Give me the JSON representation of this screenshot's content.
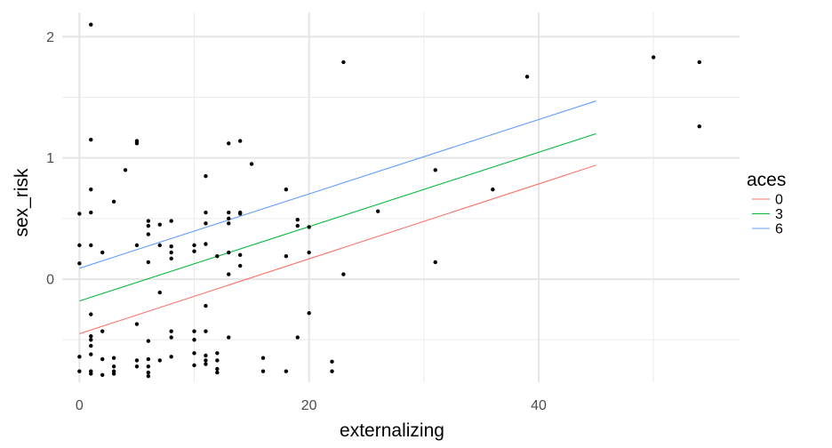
{
  "chart_data": {
    "type": "scatter",
    "xlabel": "externalizing",
    "ylabel": "sex_risk",
    "xlim": [
      -1.5,
      57.5
    ],
    "ylim": [
      -0.85,
      2.2
    ],
    "x_ticks": [
      0,
      20,
      40
    ],
    "x_tick_labels": [
      "0",
      "20",
      "40"
    ],
    "y_ticks": [
      0,
      1,
      2
    ],
    "y_tick_labels": [
      "0",
      "1",
      "2"
    ],
    "grid": true,
    "point_color": "#000000",
    "points": [
      [
        0,
        0.54
      ],
      [
        0,
        0.28
      ],
      [
        0,
        0.13
      ],
      [
        0,
        -0.64
      ],
      [
        0,
        -0.76
      ],
      [
        1,
        2.1
      ],
      [
        1,
        1.15
      ],
      [
        1,
        0.74
      ],
      [
        1,
        0.55
      ],
      [
        1,
        0.28
      ],
      [
        1,
        -0.29
      ],
      [
        1,
        -0.47
      ],
      [
        1,
        -0.5
      ],
      [
        1,
        -0.55
      ],
      [
        1,
        -0.62
      ],
      [
        1,
        -0.76
      ],
      [
        1,
        -0.78
      ],
      [
        2,
        0.22
      ],
      [
        2,
        -0.43
      ],
      [
        2,
        -0.66
      ],
      [
        2,
        -0.79
      ],
      [
        3,
        0.64
      ],
      [
        3,
        -0.65
      ],
      [
        3,
        -0.72
      ],
      [
        3,
        -0.76
      ],
      [
        3,
        -0.78
      ],
      [
        4,
        0.9
      ],
      [
        5,
        1.14
      ],
      [
        5,
        1.12
      ],
      [
        5,
        0.28
      ],
      [
        5,
        -0.37
      ],
      [
        5,
        -0.67
      ],
      [
        5,
        -0.72
      ],
      [
        6,
        0.48
      ],
      [
        6,
        0.44
      ],
      [
        6,
        0.37
      ],
      [
        6,
        0.14
      ],
      [
        6,
        -0.51
      ],
      [
        6,
        -0.66
      ],
      [
        6,
        -0.72
      ],
      [
        6,
        -0.77
      ],
      [
        6,
        -0.8
      ],
      [
        7,
        0.45
      ],
      [
        7,
        0.28
      ],
      [
        7,
        -0.11
      ],
      [
        7,
        -0.67
      ],
      [
        8,
        0.48
      ],
      [
        8,
        0.27
      ],
      [
        8,
        0.22
      ],
      [
        8,
        0.17
      ],
      [
        8,
        -0.43
      ],
      [
        8,
        -0.48
      ],
      [
        8,
        -0.64
      ],
      [
        10,
        0.28
      ],
      [
        10,
        0.23
      ],
      [
        10,
        -0.43
      ],
      [
        10,
        -0.5
      ],
      [
        10,
        -0.61
      ],
      [
        10,
        -0.71
      ],
      [
        11,
        0.85
      ],
      [
        11,
        0.55
      ],
      [
        11,
        0.46
      ],
      [
        11,
        0.29
      ],
      [
        11,
        -0.22
      ],
      [
        11,
        -0.43
      ],
      [
        11,
        -0.63
      ],
      [
        11,
        -0.67
      ],
      [
        11,
        -0.7
      ],
      [
        12,
        0.19
      ],
      [
        12,
        -0.61
      ],
      [
        12,
        -0.67
      ],
      [
        12,
        -0.74
      ],
      [
        12,
        -0.77
      ],
      [
        13,
        1.12
      ],
      [
        13,
        0.55
      ],
      [
        13,
        0.5
      ],
      [
        13,
        0.46
      ],
      [
        13,
        0.22
      ],
      [
        13,
        0.04
      ],
      [
        13,
        -0.48
      ],
      [
        14,
        1.14
      ],
      [
        14,
        0.55
      ],
      [
        14,
        0.54
      ],
      [
        14,
        0.2
      ],
      [
        14,
        0.11
      ],
      [
        15,
        0.95
      ],
      [
        16,
        -0.65
      ],
      [
        16,
        -0.76
      ],
      [
        18,
        0.74
      ],
      [
        18,
        0.19
      ],
      [
        18,
        -0.76
      ],
      [
        19,
        0.49
      ],
      [
        19,
        0.44
      ],
      [
        19,
        -0.48
      ],
      [
        20,
        0.43
      ],
      [
        20,
        0.22
      ],
      [
        20,
        -0.28
      ],
      [
        22,
        -0.68
      ],
      [
        22,
        -0.76
      ],
      [
        23,
        1.79
      ],
      [
        23,
        0.04
      ],
      [
        26,
        0.56
      ],
      [
        31,
        0.9
      ],
      [
        31,
        0.14
      ],
      [
        36,
        0.74
      ],
      [
        39,
        1.67
      ],
      [
        50,
        1.83
      ],
      [
        54,
        1.79
      ],
      [
        54,
        1.26
      ]
    ],
    "legend": {
      "title": "aces",
      "placement": "right",
      "entries": [
        "0",
        "3",
        "6"
      ]
    },
    "lines": [
      {
        "name": "0",
        "color": "#F8766D",
        "x": [
          0,
          45
        ],
        "y": [
          -0.45,
          0.94
        ]
      },
      {
        "name": "3",
        "color": "#00BA38",
        "x": [
          0,
          45
        ],
        "y": [
          -0.18,
          1.2
        ]
      },
      {
        "name": "6",
        "color": "#619CFF",
        "x": [
          0,
          45
        ],
        "y": [
          0.09,
          1.47
        ]
      }
    ]
  }
}
